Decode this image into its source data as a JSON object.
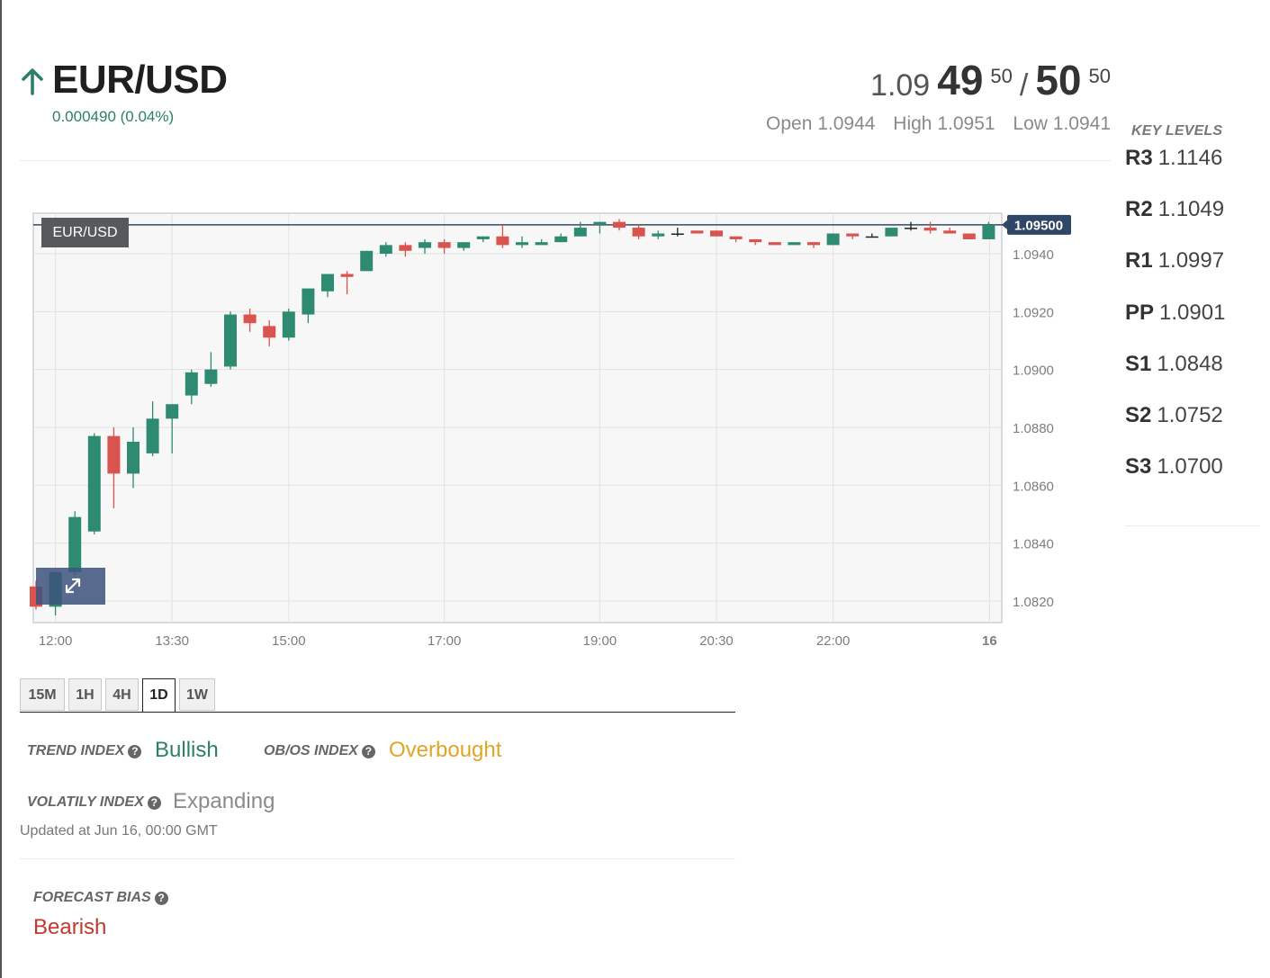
{
  "header": {
    "pair": "EUR/USD",
    "change": "0.000490 (0.04%)",
    "bid_prefix": "1.09",
    "bid_big": "49",
    "bid_sup": "50",
    "slash": "/",
    "ask_big": "50",
    "ask_sup": "50",
    "open": "Open 1.0944",
    "high": "High 1.0951",
    "low": "Low 1.0941",
    "direction_icon": "arrow-up-icon",
    "up_color": "#2e7f68"
  },
  "key_levels": {
    "title": "KEY LEVELS",
    "items": [
      {
        "name": "R3",
        "value": "1.1146"
      },
      {
        "name": "R2",
        "value": "1.1049"
      },
      {
        "name": "R1",
        "value": "1.0997"
      },
      {
        "name": "PP",
        "value": "1.0901"
      },
      {
        "name": "S1",
        "value": "1.0848"
      },
      {
        "name": "S2",
        "value": "1.0752"
      },
      {
        "name": "S3",
        "value": "1.0700"
      }
    ]
  },
  "chart_data": {
    "type": "candlestick",
    "symbol_label": "EUR/USD",
    "current_price_label": "1.09500",
    "current_price": 1.095,
    "y_ticks": [
      "1.0820",
      "1.0840",
      "1.0860",
      "1.0880",
      "1.0900",
      "1.0920",
      "1.0940"
    ],
    "y_tick_values": [
      1.082,
      1.084,
      1.086,
      1.088,
      1.09,
      1.092,
      1.094
    ],
    "ylim": [
      1.08125,
      1.0954
    ],
    "x_ticks": [
      {
        "label": "12:00",
        "index": 1
      },
      {
        "label": "13:30",
        "index": 7
      },
      {
        "label": "15:00",
        "index": 13
      },
      {
        "label": "17:00",
        "index": 21
      },
      {
        "label": "19:00",
        "index": 29
      },
      {
        "label": "20:30",
        "index": 35
      },
      {
        "label": "22:00",
        "index": 41
      },
      {
        "label": "16",
        "index": 49
      }
    ],
    "up_color": "#2e8b72",
    "down_color": "#d9534f",
    "candles": [
      {
        "o": 1.0825,
        "h": 1.0827,
        "l": 1.0817,
        "c": 1.0818
      },
      {
        "o": 1.0818,
        "h": 1.083,
        "l": 1.0815,
        "c": 1.083
      },
      {
        "o": 1.083,
        "h": 1.0851,
        "l": 1.0829,
        "c": 1.0849
      },
      {
        "o": 1.0844,
        "h": 1.0878,
        "l": 1.0843,
        "c": 1.0877
      },
      {
        "o": 1.0877,
        "h": 1.088,
        "l": 1.0852,
        "c": 1.0864
      },
      {
        "o": 1.0864,
        "h": 1.088,
        "l": 1.0859,
        "c": 1.0875
      },
      {
        "o": 1.0871,
        "h": 1.0889,
        "l": 1.087,
        "c": 1.0883
      },
      {
        "o": 1.0883,
        "h": 1.0888,
        "l": 1.0871,
        "c": 1.0888
      },
      {
        "o": 1.0891,
        "h": 1.09,
        "l": 1.0888,
        "c": 1.0899
      },
      {
        "o": 1.0895,
        "h": 1.0906,
        "l": 1.0894,
        "c": 1.09
      },
      {
        "o": 1.0901,
        "h": 1.092,
        "l": 1.09,
        "c": 1.0919
      },
      {
        "o": 1.0919,
        "h": 1.0921,
        "l": 1.0913,
        "c": 1.0916
      },
      {
        "o": 1.0915,
        "h": 1.0917,
        "l": 1.0908,
        "c": 1.0911
      },
      {
        "o": 1.0911,
        "h": 1.0921,
        "l": 1.091,
        "c": 1.092
      },
      {
        "o": 1.0919,
        "h": 1.0928,
        "l": 1.0916,
        "c": 1.0928
      },
      {
        "o": 1.0927,
        "h": 1.0933,
        "l": 1.0925,
        "c": 1.0933
      },
      {
        "o": 1.0933,
        "h": 1.0934,
        "l": 1.0926,
        "c": 1.0932
      },
      {
        "o": 1.0934,
        "h": 1.0941,
        "l": 1.0934,
        "c": 1.0941
      },
      {
        "o": 1.094,
        "h": 1.0944,
        "l": 1.0939,
        "c": 1.0943
      },
      {
        "o": 1.0943,
        "h": 1.0944,
        "l": 1.0939,
        "c": 1.0941
      },
      {
        "o": 1.0942,
        "h": 1.0945,
        "l": 1.094,
        "c": 1.0944
      },
      {
        "o": 1.0944,
        "h": 1.0945,
        "l": 1.094,
        "c": 1.0942
      },
      {
        "o": 1.0942,
        "h": 1.0944,
        "l": 1.0941,
        "c": 1.0944
      },
      {
        "o": 1.0945,
        "h": 1.0946,
        "l": 1.0944,
        "c": 1.0946
      },
      {
        "o": 1.0946,
        "h": 1.095,
        "l": 1.0942,
        "c": 1.0943
      },
      {
        "o": 1.0943,
        "h": 1.0946,
        "l": 1.0942,
        "c": 1.0944
      },
      {
        "o": 1.0943,
        "h": 1.0945,
        "l": 1.0943,
        "c": 1.0944
      },
      {
        "o": 1.0944,
        "h": 1.0947,
        "l": 1.0944,
        "c": 1.0946
      },
      {
        "o": 1.0946,
        "h": 1.0951,
        "l": 1.0946,
        "c": 1.0949
      },
      {
        "o": 1.095,
        "h": 1.0951,
        "l": 1.0947,
        "c": 1.0951
      },
      {
        "o": 1.0951,
        "h": 1.0952,
        "l": 1.0948,
        "c": 1.0949
      },
      {
        "o": 1.0949,
        "h": 1.095,
        "l": 1.0945,
        "c": 1.0946
      },
      {
        "o": 1.0946,
        "h": 1.0948,
        "l": 1.0945,
        "c": 1.0947
      },
      {
        "o": 1.0947,
        "h": 1.0949,
        "l": 1.0946,
        "c": 1.0947
      },
      {
        "o": 1.0948,
        "h": 1.0948,
        "l": 1.0947,
        "c": 1.0947
      },
      {
        "o": 1.0948,
        "h": 1.0948,
        "l": 1.0946,
        "c": 1.0946
      },
      {
        "o": 1.0946,
        "h": 1.0946,
        "l": 1.0944,
        "c": 1.0945
      },
      {
        "o": 1.0945,
        "h": 1.0945,
        "l": 1.0943,
        "c": 1.0944
      },
      {
        "o": 1.0944,
        "h": 1.0944,
        "l": 1.0943,
        "c": 1.0943
      },
      {
        "o": 1.0943,
        "h": 1.0944,
        "l": 1.0943,
        "c": 1.0944
      },
      {
        "o": 1.0944,
        "h": 1.0944,
        "l": 1.0942,
        "c": 1.0943
      },
      {
        "o": 1.0943,
        "h": 1.0947,
        "l": 1.0943,
        "c": 1.0947
      },
      {
        "o": 1.0947,
        "h": 1.0947,
        "l": 1.0945,
        "c": 1.0946
      },
      {
        "o": 1.0946,
        "h": 1.0947,
        "l": 1.0946,
        "c": 1.0946
      },
      {
        "o": 1.0946,
        "h": 1.0949,
        "l": 1.0946,
        "c": 1.0949
      },
      {
        "o": 1.0949,
        "h": 1.0951,
        "l": 1.0948,
        "c": 1.0949
      },
      {
        "o": 1.0949,
        "h": 1.0951,
        "l": 1.0947,
        "c": 1.0948
      },
      {
        "o": 1.0948,
        "h": 1.0949,
        "l": 1.0947,
        "c": 1.0947
      },
      {
        "o": 1.0947,
        "h": 1.0947,
        "l": 1.0945,
        "c": 1.0945
      },
      {
        "o": 1.0945,
        "h": 1.0951,
        "l": 1.0945,
        "c": 1.095
      }
    ]
  },
  "timeframes": {
    "items": [
      "15M",
      "1H",
      "4H",
      "1D",
      "1W"
    ],
    "active": "1D"
  },
  "indices": {
    "trend_label": "TREND INDEX",
    "trend_value": "Bullish",
    "trend_color": "#2e7f68",
    "obos_label": "OB/OS INDEX",
    "obos_value": "Overbought",
    "obos_color": "#e0a526",
    "volatility_label": "VOLATILY INDEX",
    "volatility_value": "Expanding",
    "volatility_color": "#8a8a8a",
    "updated": "Updated at Jun 16, 00:00 GMT",
    "forecast_label": "FORECAST BIAS",
    "forecast_value": "Bearish",
    "forecast_color": "#c0392b"
  }
}
